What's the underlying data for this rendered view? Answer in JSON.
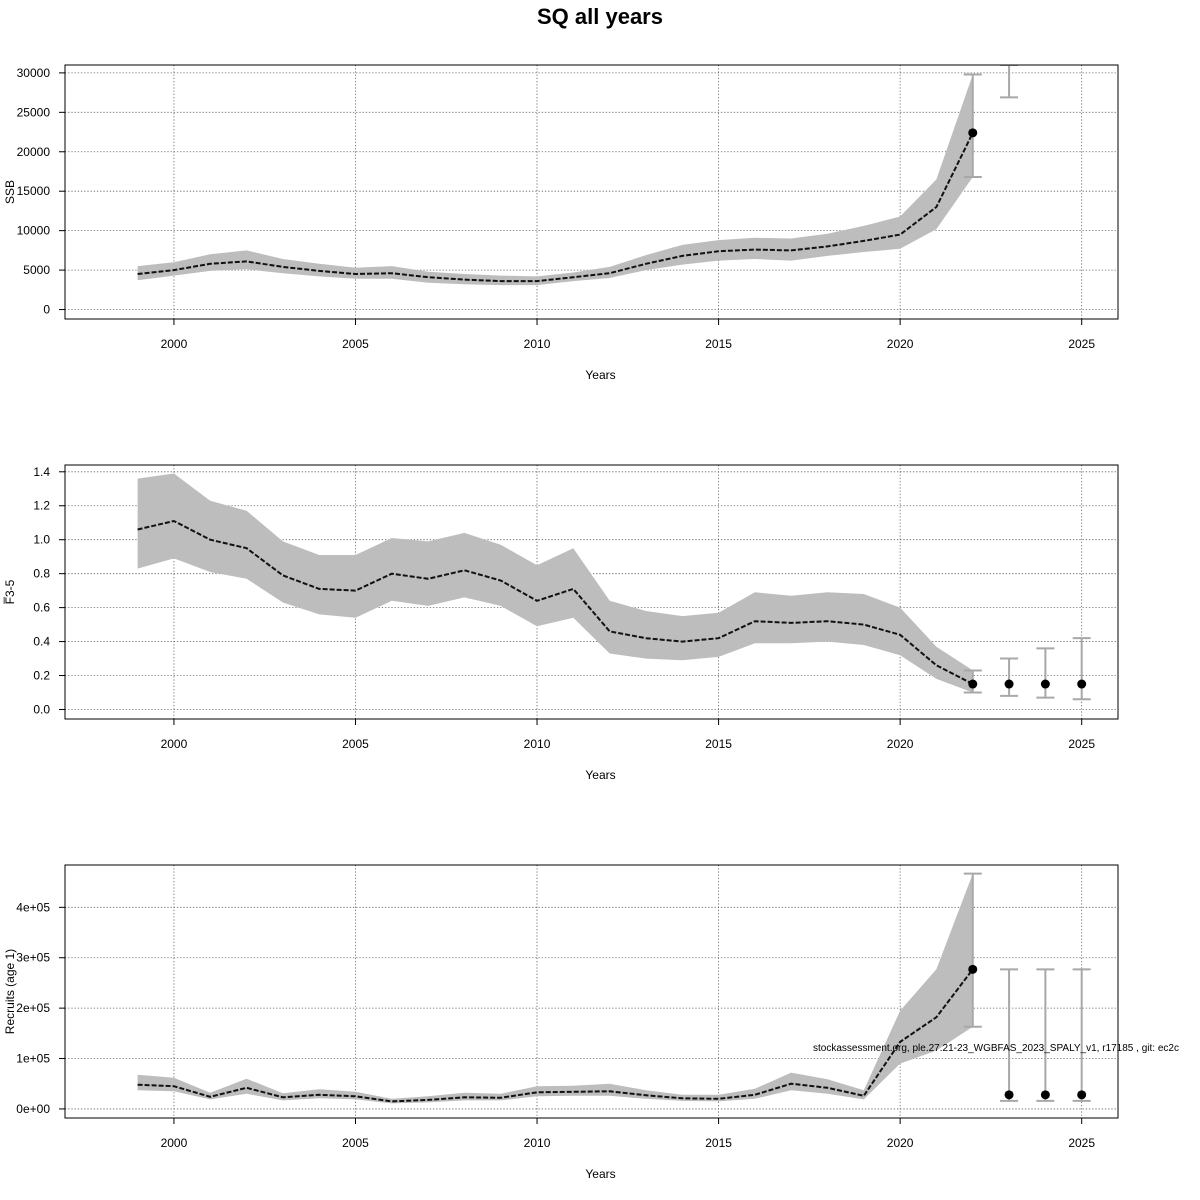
{
  "figure": {
    "title": "SQ all years",
    "footer": "stockassessment.org, ple.27.21-23_WGBFAS_2023_SPALY_v1, r17185 , git: ec2c"
  },
  "chart_data": [
    {
      "type": "line",
      "id": "ssb",
      "xlabel": "Years",
      "ylabel": "SSB",
      "xlim": [
        1997,
        2026
      ],
      "ylim": [
        -1200,
        31000
      ],
      "x_ticks": [
        2000,
        2005,
        2010,
        2015,
        2020,
        2025
      ],
      "x_tick_labels": [
        "2000",
        "2005",
        "2010",
        "2015",
        "2020",
        "2025"
      ],
      "y_ticks": [
        0,
        5000,
        10000,
        15000,
        20000,
        25000,
        30000
      ],
      "y_tick_labels": [
        "0",
        "5000",
        "10000",
        "15000",
        "20000",
        "25000",
        "30000"
      ],
      "grid": true,
      "series": [
        {
          "x": [
            1999,
            2000,
            2001,
            2002,
            2003,
            2004,
            2005,
            2006,
            2007,
            2008,
            2009,
            2010,
            2011,
            2012,
            2013,
            2014,
            2015,
            2016,
            2017,
            2018,
            2019,
            2020,
            2021,
            2022
          ],
          "estimate": [
            4500,
            5000,
            5800,
            6100,
            5400,
            4900,
            4500,
            4600,
            4100,
            3800,
            3600,
            3600,
            4100,
            4600,
            5800,
            6800,
            7400,
            7600,
            7500,
            8000,
            8700,
            9500,
            13000,
            22400
          ],
          "lower": [
            3700,
            4300,
            4900,
            5100,
            4600,
            4200,
            3900,
            3900,
            3400,
            3200,
            3100,
            3100,
            3600,
            4000,
            5000,
            5700,
            6200,
            6400,
            6200,
            6800,
            7300,
            7700,
            10200,
            16800
          ],
          "upper": [
            5500,
            6000,
            7000,
            7500,
            6400,
            5800,
            5300,
            5500,
            4800,
            4500,
            4300,
            4200,
            4700,
            5400,
            6900,
            8200,
            8800,
            9100,
            9000,
            9600,
            10600,
            11800,
            16500,
            29800
          ]
        }
      ],
      "points": [
        {
          "x": 2022,
          "y": 22400,
          "lower": 16800,
          "upper": 29800
        }
      ],
      "bars_only": [
        {
          "x": 2023,
          "lower": 26900,
          "upper": 31000
        }
      ]
    },
    {
      "type": "line",
      "id": "fbar",
      "xlabel": "Years",
      "ylabel": "F̅3-5",
      "xlim": [
        1997,
        2026
      ],
      "ylim": [
        -0.056,
        1.44
      ],
      "x_ticks": [
        2000,
        2005,
        2010,
        2015,
        2020,
        2025
      ],
      "x_tick_labels": [
        "2000",
        "2005",
        "2010",
        "2015",
        "2020",
        "2025"
      ],
      "y_ticks": [
        0.0,
        0.2,
        0.4,
        0.6,
        0.8,
        1.0,
        1.2,
        1.4
      ],
      "y_tick_labels": [
        "0.0",
        "0.2",
        "0.4",
        "0.6",
        "0.8",
        "1.0",
        "1.2",
        "1.4"
      ],
      "grid": true,
      "series": [
        {
          "x": [
            1999,
            2000,
            2001,
            2002,
            2003,
            2004,
            2005,
            2006,
            2007,
            2008,
            2009,
            2010,
            2011,
            2012,
            2013,
            2014,
            2015,
            2016,
            2017,
            2018,
            2019,
            2020,
            2021,
            2022
          ],
          "estimate": [
            1.06,
            1.11,
            1.0,
            0.95,
            0.79,
            0.71,
            0.7,
            0.8,
            0.77,
            0.82,
            0.76,
            0.64,
            0.71,
            0.46,
            0.42,
            0.4,
            0.42,
            0.52,
            0.51,
            0.52,
            0.5,
            0.44,
            0.26,
            0.15
          ],
          "lower": [
            0.83,
            0.89,
            0.81,
            0.77,
            0.63,
            0.56,
            0.54,
            0.64,
            0.61,
            0.66,
            0.61,
            0.49,
            0.54,
            0.33,
            0.3,
            0.29,
            0.31,
            0.39,
            0.39,
            0.4,
            0.38,
            0.32,
            0.18,
            0.1
          ],
          "upper": [
            1.36,
            1.39,
            1.23,
            1.17,
            0.99,
            0.91,
            0.91,
            1.01,
            0.99,
            1.04,
            0.97,
            0.85,
            0.95,
            0.64,
            0.58,
            0.55,
            0.57,
            0.69,
            0.67,
            0.69,
            0.68,
            0.6,
            0.37,
            0.23
          ]
        }
      ],
      "points": [
        {
          "x": 2022,
          "y": 0.15,
          "lower": 0.1,
          "upper": 0.23
        },
        {
          "x": 2023,
          "y": 0.15,
          "lower": 0.08,
          "upper": 0.3
        },
        {
          "x": 2024,
          "y": 0.15,
          "lower": 0.07,
          "upper": 0.36
        },
        {
          "x": 2025,
          "y": 0.15,
          "lower": 0.06,
          "upper": 0.42
        }
      ],
      "bars_only": []
    },
    {
      "type": "line",
      "id": "recruits",
      "xlabel": "Years",
      "ylabel": "Recruits (age 1)",
      "xlim": [
        1997,
        2026
      ],
      "ylim": [
        -18000,
        484000
      ],
      "x_ticks": [
        2000,
        2005,
        2010,
        2015,
        2020,
        2025
      ],
      "x_tick_labels": [
        "2000",
        "2005",
        "2010",
        "2015",
        "2020",
        "2025"
      ],
      "y_ticks": [
        0,
        100000,
        200000,
        300000,
        400000
      ],
      "y_tick_labels": [
        "0e+00",
        "1e+05",
        "2e+05",
        "3e+05",
        "4e+05"
      ],
      "grid": true,
      "series": [
        {
          "x": [
            1999,
            2000,
            2001,
            2002,
            2003,
            2004,
            2005,
            2006,
            2007,
            2008,
            2009,
            2010,
            2011,
            2012,
            2013,
            2014,
            2015,
            2016,
            2017,
            2018,
            2019,
            2020,
            2021,
            2022
          ],
          "estimate": [
            48000,
            45000,
            24000,
            42000,
            23000,
            28000,
            25000,
            15000,
            18000,
            23000,
            22000,
            33000,
            34000,
            35000,
            27000,
            21000,
            20000,
            28000,
            50000,
            42000,
            26000,
            133000,
            182000,
            277000
          ],
          "lower": [
            37000,
            35000,
            19000,
            30000,
            17000,
            21000,
            19000,
            11000,
            13000,
            17000,
            17000,
            25000,
            26000,
            26000,
            20000,
            16000,
            15000,
            20000,
            37000,
            30000,
            19000,
            90000,
            116000,
            163000
          ],
          "upper": [
            68000,
            62000,
            32000,
            60000,
            31000,
            39000,
            34000,
            20000,
            25000,
            32000,
            30000,
            45000,
            46000,
            50000,
            37000,
            28000,
            28000,
            40000,
            72000,
            59000,
            37000,
            195000,
            277000,
            467000
          ]
        }
      ],
      "points": [
        {
          "x": 2022,
          "y": 277000,
          "lower": 163000,
          "upper": 467000
        },
        {
          "x": 2023,
          "y": 28000,
          "lower": 16000,
          "upper": 277000
        },
        {
          "x": 2024,
          "y": 28000,
          "lower": 16000,
          "upper": 277000
        },
        {
          "x": 2025,
          "y": 28000,
          "lower": 16000,
          "upper": 277000
        }
      ],
      "bars_only": []
    }
  ]
}
